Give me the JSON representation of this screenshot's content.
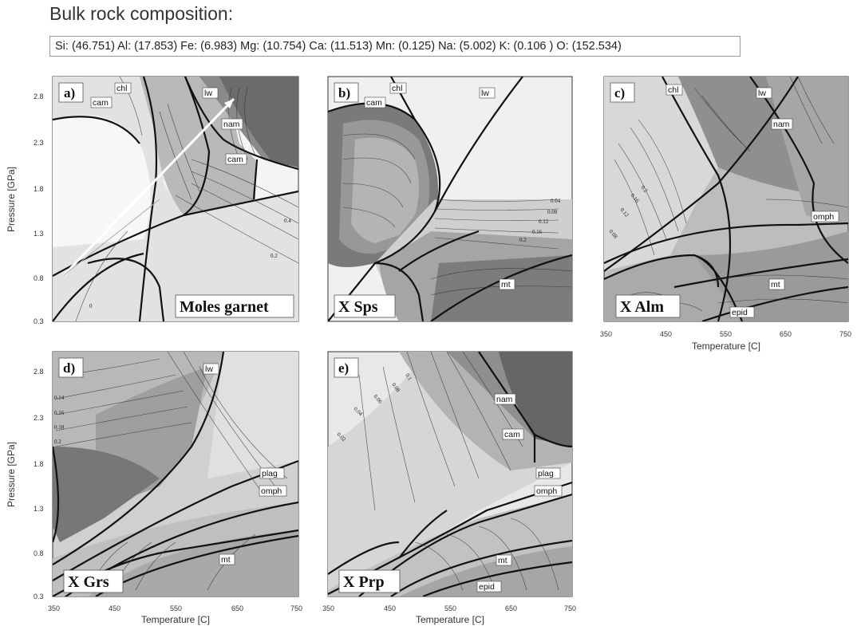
{
  "header": {
    "title": "Bulk rock composition:",
    "composition": "Si: (46.751) Al: (17.853) Fe: (6.983) Mg: (10.754) Ca: (11.513) Mn: (0.125) Na: (5.002) K: (0.106 ) O: (152.534)"
  },
  "axes": {
    "xlabel": "Temperature [C]",
    "ylabel": "Pressure [GPa]",
    "xticks": [
      "350",
      "450",
      "550",
      "650",
      "750"
    ],
    "yticks": [
      "2.8",
      "2.3",
      "1.8",
      "1.3",
      "0.8",
      "0.3"
    ]
  },
  "panels": [
    {
      "label": "a)",
      "title": "Moles garnet",
      "minerals": [
        "chl",
        "cam",
        "lw",
        "nam",
        "cam"
      ],
      "contours": [
        "0.4",
        "0.2",
        "0"
      ],
      "colors": {
        "fill_light": "#eeeeee",
        "fill_mid": "#bdbdbd",
        "fill_dark": "#6c6c6c"
      }
    },
    {
      "label": "b)",
      "title": "X Sps",
      "minerals": [
        "chl",
        "cam",
        "lw",
        "mt"
      ],
      "contours": [
        "0.04",
        "0.08",
        "0.12",
        "0.16",
        "0.2"
      ]
    },
    {
      "label": "c)",
      "title": "X Alm",
      "minerals": [
        "chl",
        "lw",
        "nam",
        "omph",
        "mt",
        "epid"
      ],
      "contours": [
        "0.2",
        "0.16",
        "0.12",
        "0.08"
      ]
    },
    {
      "label": "d)",
      "title": "X Grs",
      "minerals": [
        "lw",
        "plag",
        "omph",
        "mt"
      ],
      "contours": [
        "0.14",
        "0.16",
        "0.18",
        "0.2"
      ]
    },
    {
      "label": "e)",
      "title": "X Prp",
      "minerals": [
        "nam",
        "cam",
        "plag",
        "omph",
        "mt",
        "epid"
      ],
      "contours": [
        "0.1",
        "0.08",
        "0.06",
        "0.04",
        "0.02"
      ]
    }
  ]
}
